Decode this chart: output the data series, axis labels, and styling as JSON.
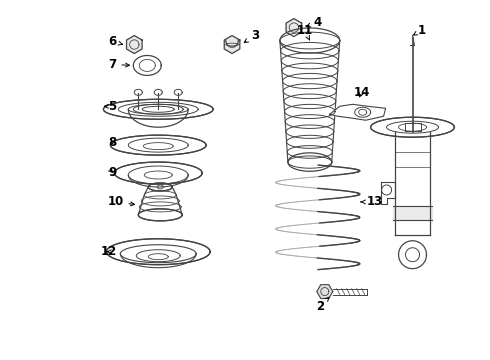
{
  "background_color": "#ffffff",
  "line_color": "#444444",
  "label_color": "#000000",
  "fig_width": 4.9,
  "fig_height": 3.6,
  "dpi": 100
}
